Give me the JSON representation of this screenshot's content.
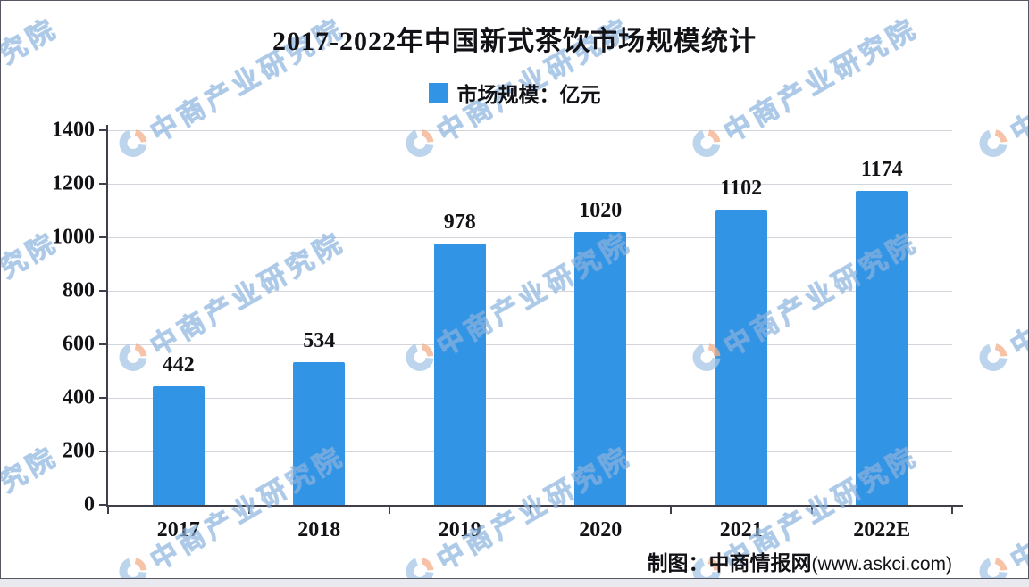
{
  "title": "2017-2022年中国新式茶饮市场规模统计",
  "legend": {
    "marker_color": "#3294E5",
    "label": "市场规模：亿元"
  },
  "watermark": {
    "text": "中商产业研究院",
    "logo_blue": "#A6C6E6",
    "logo_orange": "#F5B08C"
  },
  "footer": {
    "label_cn": "制图：中商情报网",
    "label_url": "(www.askci.com)"
  },
  "chart_data": {
    "type": "bar",
    "title": "2017-2022年中国新式茶饮市场规模统计",
    "categories": [
      "2017",
      "2018",
      "2019",
      "2020",
      "2021",
      "2022E"
    ],
    "series": [
      {
        "name": "市场规模：亿元",
        "values": [
          442,
          534,
          978,
          1020,
          1102,
          1174
        ]
      }
    ],
    "xlabel": "",
    "ylabel": "",
    "ylim": [
      0,
      1400
    ],
    "yticks": [
      0,
      200,
      400,
      600,
      800,
      1000,
      1200,
      1400
    ],
    "grid": true,
    "legend_position": "top",
    "bar_color": "#3294E5",
    "axis_color": "#3F3F4B",
    "gridline_color": "#D2D5DC"
  }
}
